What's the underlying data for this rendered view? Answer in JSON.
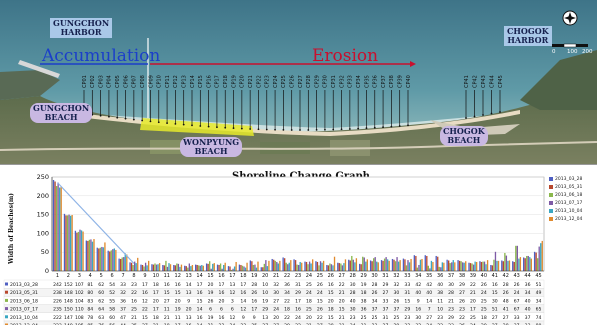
{
  "map": {
    "labels": {
      "gungchon_harbor": [
        "GUNGCHON",
        "HARBOR"
      ],
      "chogok_harbor": [
        "CHOGOK",
        "HARBOR"
      ],
      "gungchon_beach": [
        "GUNGCHON",
        "BEACH"
      ],
      "wonpyung_beach": [
        "WONPYUNG",
        "BEACH"
      ],
      "chogok_beach": [
        "CHOGOK",
        "BEACH"
      ],
      "accumulation": "Accumulation",
      "erosion": "Erosion"
    },
    "scale": {
      "start": "0",
      "mid": "100",
      "end": "200"
    },
    "left_profiles": [
      "CP01",
      "CP02",
      "CP03",
      "CP04",
      "CP05",
      "CP06",
      "CP07",
      "CP08",
      "CP09",
      "CP10",
      "CP11",
      "CP12",
      "CP13",
      "CP14",
      "CP15",
      "CP16",
      "CP17",
      "CP18",
      "CP19",
      "CP20",
      "CP21",
      "CP22",
      "CP23",
      "CP24",
      "CP25",
      "CP26",
      "CP27",
      "CP28",
      "CP29",
      "CP30",
      "CP31",
      "CP32",
      "CP33",
      "CP34",
      "CP35",
      "CP36",
      "CP37",
      "CP38",
      "CP39",
      "CP40"
    ],
    "right_profiles": [
      "CP41",
      "CP42",
      "CP43",
      "CP44",
      "CP45"
    ],
    "colors": {
      "accumulation": "#1b3fc9",
      "erosion": "#c8102e",
      "highlight": "#e6ea2c"
    }
  },
  "chart_data": {
    "type": "bar",
    "title": "Shoreline Change Graph",
    "ylabel": "Width of Beaches(m)",
    "ylim": [
      0,
      250
    ],
    "yticks": [
      0,
      50,
      100,
      150,
      200,
      250
    ],
    "categories": [
      "1",
      "2",
      "3",
      "4",
      "5",
      "6",
      "7",
      "8",
      "9",
      "10",
      "11",
      "12",
      "13",
      "14",
      "15",
      "16",
      "17",
      "18",
      "19",
      "20",
      "21",
      "22",
      "23",
      "24",
      "25",
      "26",
      "27",
      "28",
      "29",
      "30",
      "31",
      "32",
      "33",
      "34",
      "35",
      "36",
      "37",
      "38",
      "39",
      "40",
      "41",
      "42",
      "43",
      "44",
      "45"
    ],
    "series": [
      {
        "name": "2013_03_28",
        "color": "#4f5fc2",
        "values": [
          242,
          152,
          107,
          81,
          62,
          54,
          33,
          23,
          17,
          18,
          16,
          16,
          14,
          17,
          20,
          17,
          13,
          17,
          28,
          10,
          32,
          36,
          31,
          25,
          26,
          16,
          22,
          30,
          19,
          28,
          29,
          32,
          33,
          42,
          42,
          40,
          30,
          29,
          22,
          26,
          16,
          28,
          26,
          36,
          51
        ]
      },
      {
        "name": "2013_05_31",
        "color": "#b8482d",
        "values": [
          238,
          148,
          102,
          80,
          60,
          52,
          32,
          22,
          16,
          17,
          15,
          15,
          13,
          16,
          19,
          16,
          12,
          16,
          26,
          10,
          30,
          34,
          29,
          24,
          24,
          15,
          21,
          28,
          18,
          26,
          27,
          30,
          31,
          40,
          40,
          38,
          28,
          27,
          21,
          24,
          15,
          26,
          24,
          34,
          49
        ]
      },
      {
        "name": "2013_06_18",
        "color": "#8bb84c",
        "values": [
          226,
          148,
          104,
          83,
          62,
          55,
          36,
          16,
          12,
          20,
          27,
          20,
          9,
          15,
          26,
          20,
          3,
          14,
          16,
          19,
          27,
          22,
          17,
          18,
          15,
          20,
          20,
          40,
          38,
          34,
          33,
          26,
          15,
          9,
          14,
          11,
          21,
          26,
          20,
          25,
          30,
          48,
          67,
          40,
          34
        ]
      },
      {
        "name": "2013_07_17",
        "color": "#7e5aa6",
        "values": [
          235,
          150,
          110,
          84,
          64,
          58,
          37,
          25,
          22,
          17,
          11,
          19,
          20,
          14,
          6,
          6,
          6,
          12,
          17,
          29,
          24,
          18,
          16,
          25,
          26,
          18,
          15,
          30,
          36,
          37,
          37,
          37,
          29,
          16,
          7,
          10,
          23,
          23,
          17,
          25,
          51,
          41,
          67,
          40,
          65
        ]
      },
      {
        "name": "2013_10_04",
        "color": "#3aa7c2",
        "values": [
          222,
          147,
          108,
          78,
          63,
          60,
          47,
          21,
          15,
          18,
          21,
          11,
          13,
          16,
          19,
          16,
          12,
          9,
          9,
          13,
          20,
          22,
          24,
          20,
          22,
          15,
          21,
          23,
          25,
          25,
          31,
          25,
          23,
          30,
          27,
          23,
          29,
          22,
          25,
          18,
          27,
          27,
          33,
          37,
          74
        ]
      },
      {
        "name": "2013_12_04",
        "color": "#e08a2e",
        "values": [
          223,
          149,
          105,
          85,
          76,
          56,
          44,
          35,
          27,
          21,
          18,
          17,
          16,
          14,
          21,
          22,
          24,
          22,
          25,
          27,
          27,
          29,
          22,
          31,
          27,
          38,
          31,
          34,
          31,
          23,
          27,
          29,
          32,
          32,
          24,
          22,
          23,
          26,
          24,
          29,
          27,
          28,
          37,
          33,
          80
        ]
      }
    ],
    "trend_line": {
      "from": {
        "x": "1",
        "y": 235
      },
      "to": {
        "x": "8",
        "y": 20
      }
    }
  }
}
